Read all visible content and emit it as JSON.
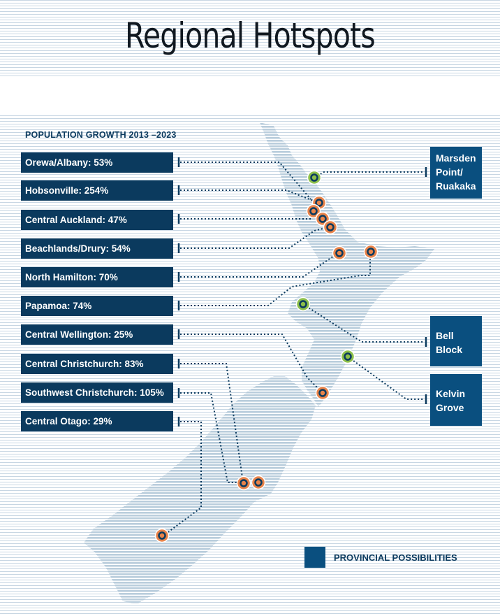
{
  "title": "Regional Hotspots",
  "subtitle": "POPULATION GROWTH 2013 –2023",
  "growth_labels": [
    {
      "name": "Orewa/Albany",
      "growth": "53%",
      "text": "Orewa/Albany: 53%"
    },
    {
      "name": "Hobsonville",
      "growth": "254%",
      "text": "Hobsonville: 254%"
    },
    {
      "name": "Central Auckland",
      "growth": "47%",
      "text": "Central Auckland: 47%"
    },
    {
      "name": "Beachlands/Drury",
      "growth": "54%",
      "text": "Beachlands/Drury: 54%"
    },
    {
      "name": "North Hamilton",
      "growth": "70%",
      "text": "North Hamilton: 70%"
    },
    {
      "name": "Papamoa",
      "growth": "74%",
      "text": "Papamoa: 74%"
    },
    {
      "name": "Central Wellington",
      "growth": "25%",
      "text": "Central Wellington: 25%"
    },
    {
      "name": "Central Christchurch",
      "growth": "83%",
      "text": "Central Christchurch: 83%"
    },
    {
      "name": "Southwest Christchurch",
      "growth": "105%",
      "text": "Southwest Christchurch: 105%"
    },
    {
      "name": "Central Otago",
      "growth": "29%",
      "text": "Central Otago: 29%"
    }
  ],
  "provincial_labels": [
    {
      "line1": "Marsden",
      "line2": "Point/",
      "line3": "Ruakaka"
    },
    {
      "line1": "Bell",
      "line2": "Block"
    },
    {
      "line1": "Kelvin",
      "line2": "Grove"
    }
  ],
  "legend": {
    "label": "PROVINCIAL POSSIBILITIES"
  },
  "colors": {
    "label_bg": "#0b3a5e",
    "provincial_bg": "#0a4f7f",
    "land": "#b9cddc",
    "metro_marker": "#e8834a",
    "provincial_marker": "#8cbf4a",
    "marker_core": "#0b3a5e"
  }
}
